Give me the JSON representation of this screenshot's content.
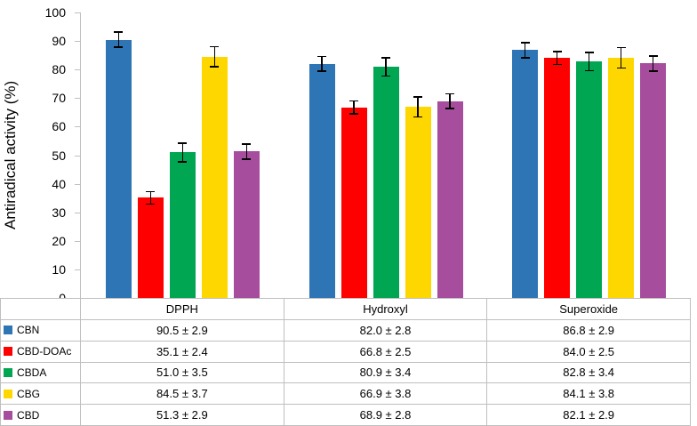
{
  "chart_data": {
    "type": "bar",
    "title": "",
    "xlabel": "",
    "ylabel": "Antiradical activity (%)",
    "ylim": [
      0,
      100
    ],
    "yticks": [
      0,
      10,
      20,
      30,
      40,
      50,
      60,
      70,
      80,
      90,
      100
    ],
    "grid": false,
    "legend_position": "table-left",
    "error_bars": true,
    "value_separator": "±",
    "categories": [
      "DPPH",
      "Hydroxyl",
      "Superoxide"
    ],
    "series": [
      {
        "name": "CBN",
        "color": "#2E75B6",
        "values": [
          90.5,
          82.0,
          86.8
        ],
        "errors": [
          2.9,
          2.8,
          2.9
        ]
      },
      {
        "name": "CBD-DOAc",
        "color": "#FF0000",
        "values": [
          35.1,
          66.8,
          84.0
        ],
        "errors": [
          2.4,
          2.5,
          2.5
        ]
      },
      {
        "name": "CBDA",
        "color": "#00A651",
        "values": [
          51.0,
          80.9,
          82.8
        ],
        "errors": [
          3.5,
          3.4,
          3.4
        ]
      },
      {
        "name": "CBG",
        "color": "#FFD700",
        "values": [
          84.5,
          66.9,
          84.1
        ],
        "errors": [
          3.7,
          3.8,
          3.8
        ]
      },
      {
        "name": "CBD",
        "color": "#A64D9E",
        "values": [
          51.3,
          68.9,
          82.1
        ],
        "errors": [
          2.9,
          2.8,
          2.9
        ]
      }
    ],
    "colors": {
      "axis_line": "#BFBFBF",
      "table_border": "#BFBFBF",
      "error_bar": "#000000"
    }
  }
}
